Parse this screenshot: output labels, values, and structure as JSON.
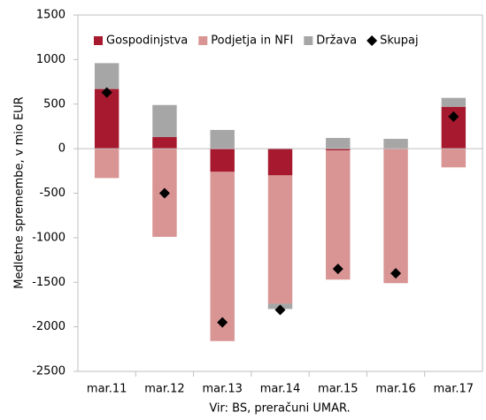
{
  "chart_data": {
    "type": "bar",
    "stacked": true,
    "ylabel": "Medletne spremembe, v mio EUR",
    "xlabel": "Vir: BS, preračuni UMAR.",
    "categories": [
      "mar.11",
      "mar.12",
      "mar.13",
      "mar.14",
      "mar.15",
      "mar.16",
      "mar.17"
    ],
    "series": [
      {
        "name": "Gospodinjstva",
        "color": "#a6192e",
        "values": [
          670,
          130,
          -260,
          -300,
          -20,
          0,
          470
        ]
      },
      {
        "name": "Podjetja in NFI",
        "color": "#d99594",
        "values": [
          -330,
          -990,
          -1900,
          -1440,
          -1450,
          -1510,
          -210
        ]
      },
      {
        "name": "Država",
        "color": "#a6a6a6",
        "values": [
          290,
          360,
          210,
          -60,
          120,
          110,
          100
        ]
      },
      {
        "name": "Skupaj",
        "color": "#000000",
        "type": "scatter",
        "marker": "diamond",
        "values": [
          630,
          -500,
          -1950,
          -1810,
          -1350,
          -1400,
          360
        ]
      }
    ],
    "ylim": [
      -2500,
      1500
    ],
    "yticks": [
      -2500,
      -2000,
      -1500,
      -1000,
      -500,
      0,
      500,
      1000,
      1500
    ],
    "grid": false,
    "legend": "top"
  }
}
